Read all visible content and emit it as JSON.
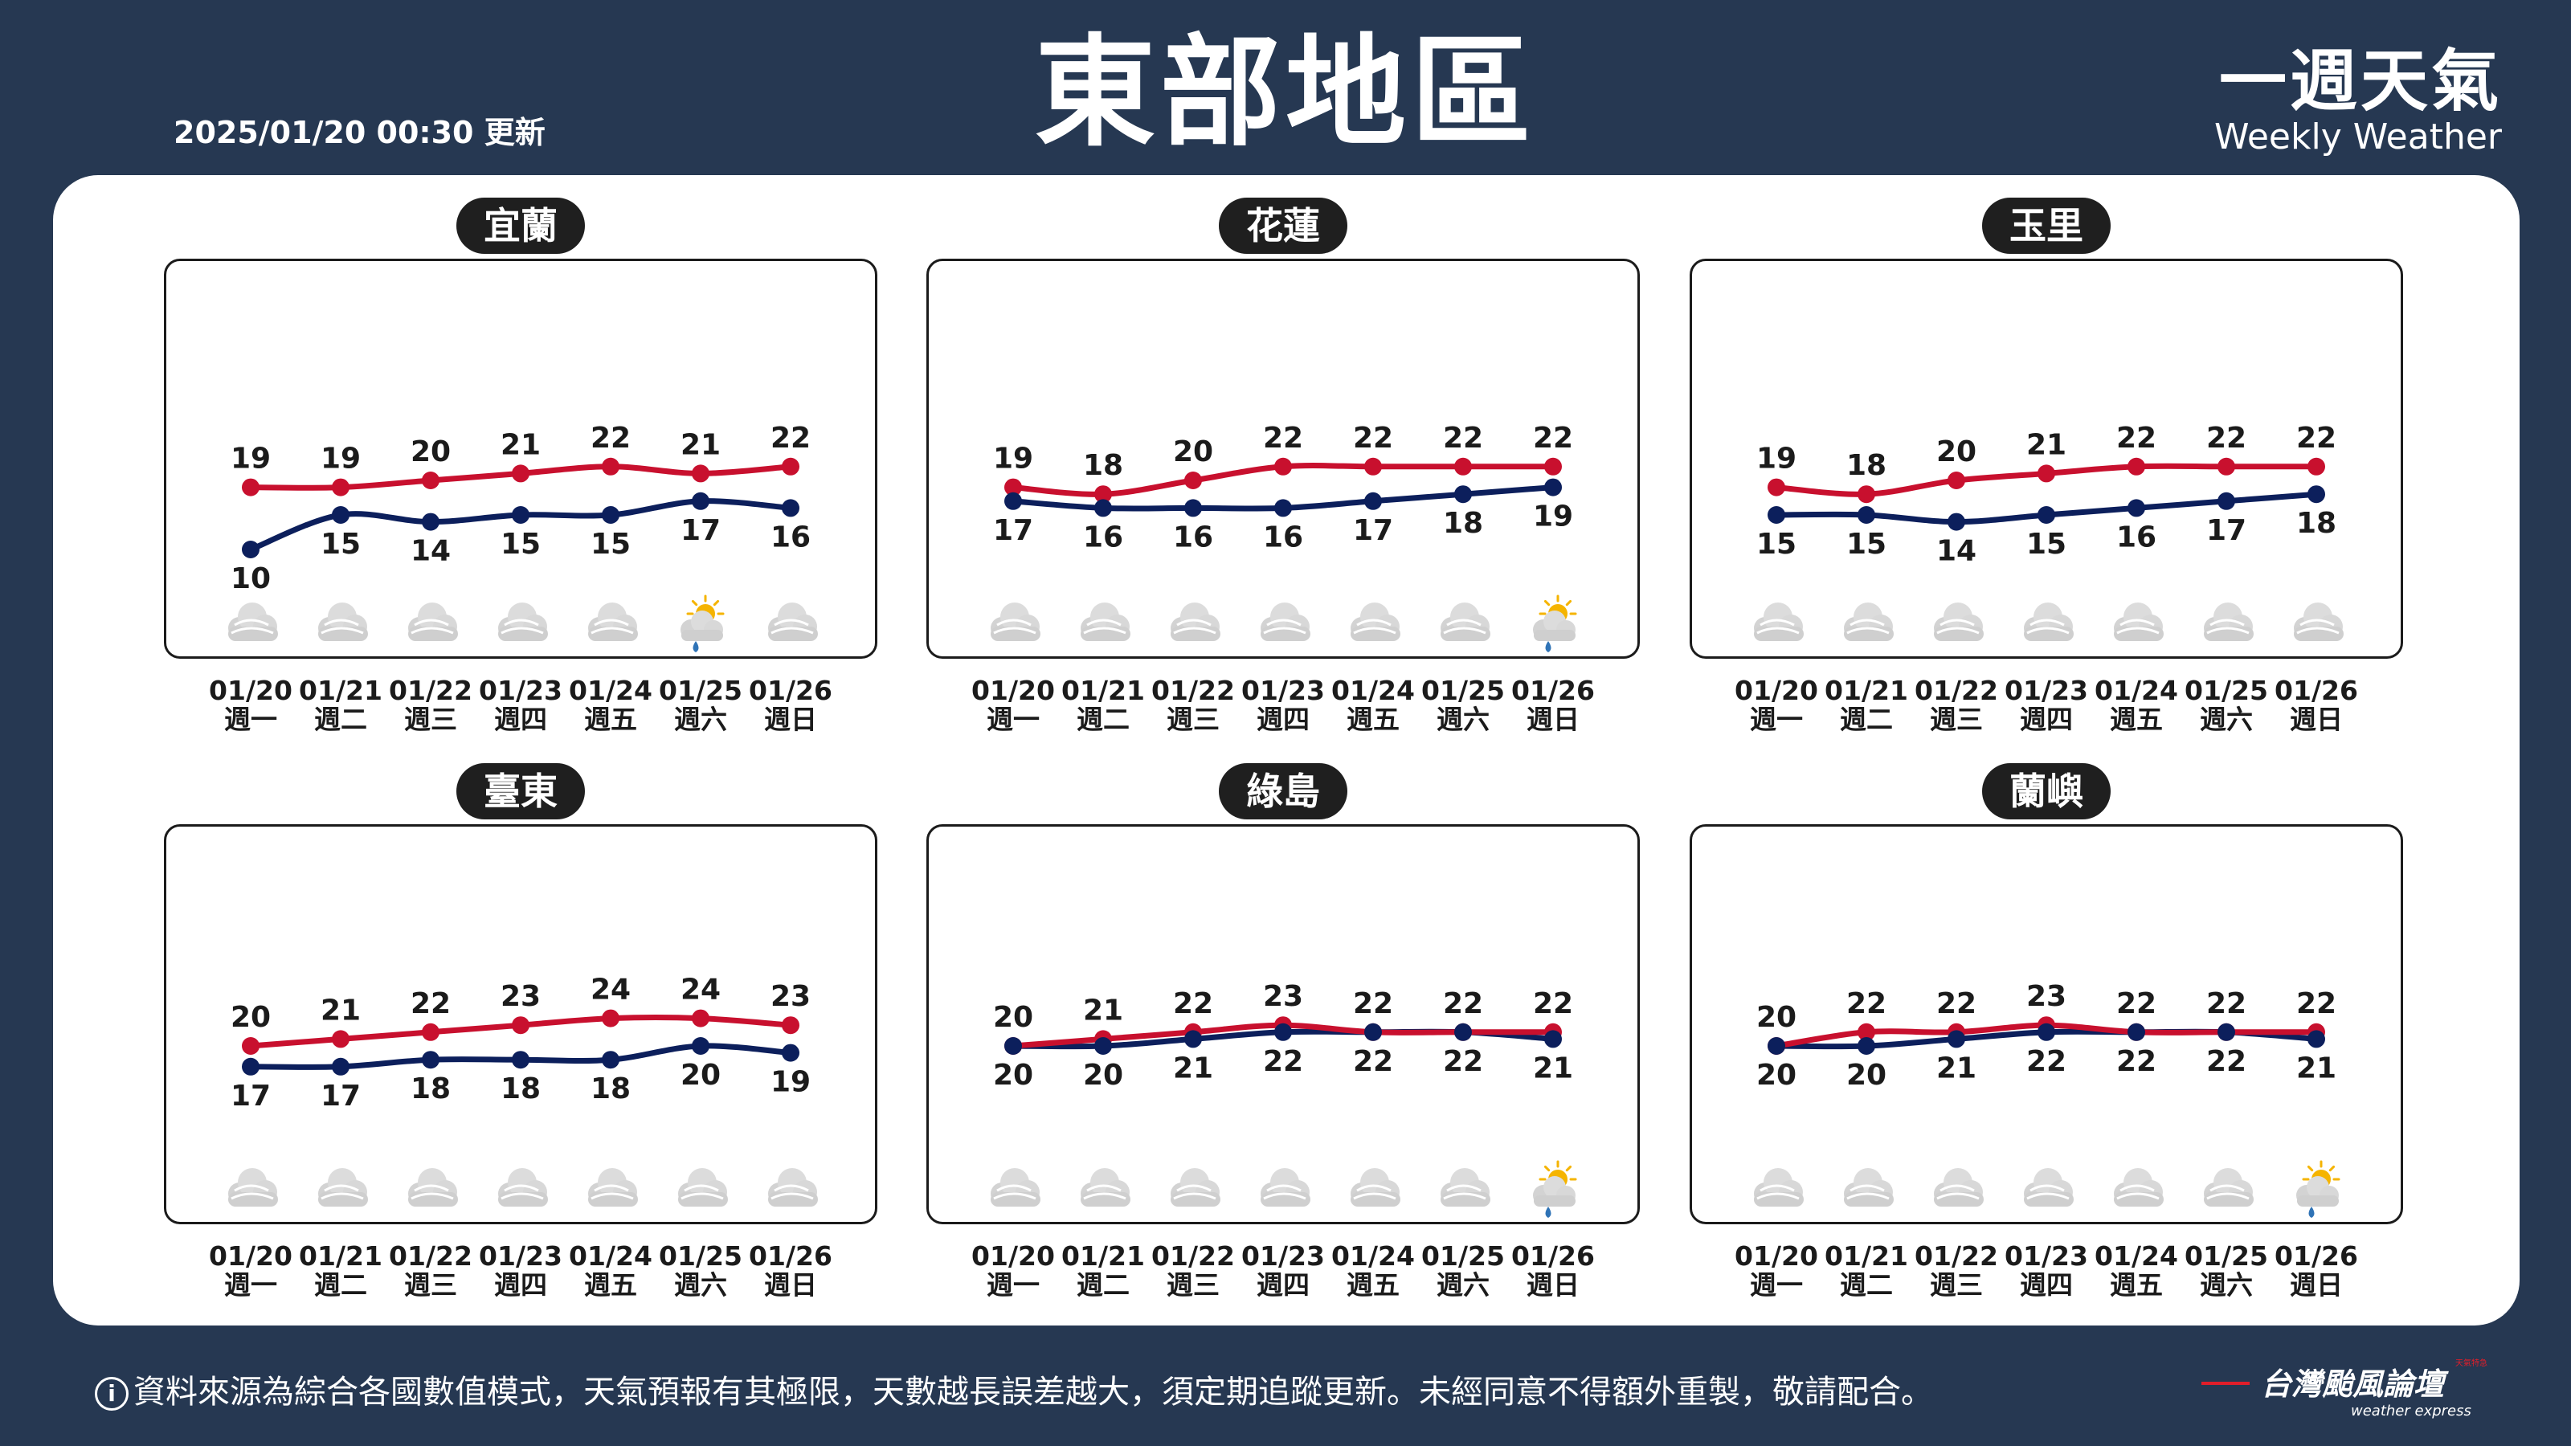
{
  "header": {
    "update_time": "2025/01/20 00:30 更新",
    "title": "東部地區",
    "brand_zh": "一週天氣",
    "brand_en": "Weekly Weather"
  },
  "footer": {
    "info_icon": "i",
    "disclaimer": "資料來源為綜合各國數值模式，天氣預報有其極限，天數越長誤差越大，須定期追蹤更新。未經同意不得額外重製，敬請配合。",
    "logo_name": "台灣颱風論壇",
    "logo_sub": "weather express",
    "logo_tag": "天氣特急"
  },
  "colors": {
    "background": "#263852",
    "high": "#c8102e",
    "low": "#0c1f5c"
  },
  "days": [
    {
      "date": "01/20",
      "weekday": "週一"
    },
    {
      "date": "01/21",
      "weekday": "週二"
    },
    {
      "date": "01/22",
      "weekday": "週三"
    },
    {
      "date": "01/23",
      "weekday": "週四"
    },
    {
      "date": "01/24",
      "weekday": "週五"
    },
    {
      "date": "01/25",
      "weekday": "週六"
    },
    {
      "date": "01/26",
      "weekday": "週日"
    }
  ],
  "chart_data": [
    {
      "type": "line",
      "title": "宜蘭",
      "categories": [
        "01/20",
        "01/21",
        "01/22",
        "01/23",
        "01/24",
        "01/25",
        "01/26"
      ],
      "series": [
        {
          "values": [
            19,
            19,
            20,
            21,
            22,
            21,
            22
          ]
        },
        {
          "values": [
            10,
            15,
            14,
            15,
            15,
            17,
            16
          ]
        }
      ],
      "icons": [
        "cloud",
        "cloud",
        "cloud",
        "cloud",
        "cloud",
        "sun-cloud-rain",
        "cloud"
      ]
    },
    {
      "type": "line",
      "title": "花蓮",
      "categories": [
        "01/20",
        "01/21",
        "01/22",
        "01/23",
        "01/24",
        "01/25",
        "01/26"
      ],
      "series": [
        {
          "values": [
            19,
            18,
            20,
            22,
            22,
            22,
            22
          ]
        },
        {
          "values": [
            17,
            16,
            16,
            16,
            17,
            18,
            19
          ]
        }
      ],
      "icons": [
        "cloud",
        "cloud",
        "cloud",
        "cloud",
        "cloud",
        "cloud",
        "sun-cloud-rain"
      ]
    },
    {
      "type": "line",
      "title": "玉里",
      "categories": [
        "01/20",
        "01/21",
        "01/22",
        "01/23",
        "01/24",
        "01/25",
        "01/26"
      ],
      "series": [
        {
          "values": [
            19,
            18,
            20,
            21,
            22,
            22,
            22
          ]
        },
        {
          "values": [
            15,
            15,
            14,
            15,
            16,
            17,
            18
          ]
        }
      ],
      "icons": [
        "cloud",
        "cloud",
        "cloud",
        "cloud",
        "cloud",
        "cloud",
        "cloud"
      ]
    },
    {
      "type": "line",
      "title": "臺東",
      "categories": [
        "01/20",
        "01/21",
        "01/22",
        "01/23",
        "01/24",
        "01/25",
        "01/26"
      ],
      "series": [
        {
          "values": [
            20,
            21,
            22,
            23,
            24,
            24,
            23
          ]
        },
        {
          "values": [
            17,
            17,
            18,
            18,
            18,
            20,
            19
          ]
        }
      ],
      "icons": [
        "cloud",
        "cloud",
        "cloud",
        "cloud",
        "cloud",
        "cloud",
        "cloud"
      ]
    },
    {
      "type": "line",
      "title": "綠島",
      "categories": [
        "01/20",
        "01/21",
        "01/22",
        "01/23",
        "01/24",
        "01/25",
        "01/26"
      ],
      "series": [
        {
          "values": [
            20,
            21,
            22,
            23,
            22,
            22,
            22
          ]
        },
        {
          "values": [
            20,
            20,
            21,
            22,
            22,
            22,
            21
          ]
        }
      ],
      "icons": [
        "cloud",
        "cloud",
        "cloud",
        "cloud",
        "cloud",
        "cloud",
        "sun-cloud-rain"
      ]
    },
    {
      "type": "line",
      "title": "蘭嶼",
      "categories": [
        "01/20",
        "01/21",
        "01/22",
        "01/23",
        "01/24",
        "01/25",
        "01/26"
      ],
      "series": [
        {
          "values": [
            20,
            22,
            22,
            23,
            22,
            22,
            22
          ]
        },
        {
          "values": [
            20,
            20,
            21,
            22,
            22,
            22,
            21
          ]
        }
      ],
      "icons": [
        "cloud",
        "cloud",
        "cloud",
        "cloud",
        "cloud",
        "cloud",
        "sun-cloud-rain"
      ]
    }
  ]
}
